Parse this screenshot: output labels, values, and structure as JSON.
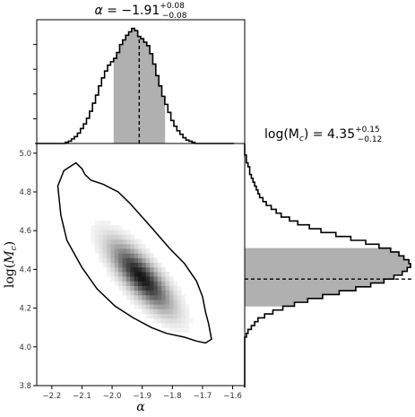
{
  "chart_data": [
    {
      "type": "histogram",
      "panel": "alpha-marginal",
      "title": {
        "prefix": "α = ",
        "value": "−1.91",
        "upper": "+0.08",
        "lower": "−0.08"
      },
      "x": [
        -2.25,
        -2.24,
        -2.23,
        -2.22,
        -2.21,
        -2.2,
        -2.19,
        -2.18,
        -2.17,
        -2.16,
        -2.15,
        -2.14,
        -2.13,
        -2.12,
        -2.11,
        -2.1,
        -2.09,
        -2.08,
        -2.07,
        -2.06,
        -2.05,
        -2.04,
        -2.03,
        -2.02,
        -2.01,
        -2.0,
        -1.99,
        -1.98,
        -1.97,
        -1.96,
        -1.95,
        -1.94,
        -1.93,
        -1.92,
        -1.91,
        -1.9,
        -1.89,
        -1.88,
        -1.87,
        -1.86,
        -1.85,
        -1.84,
        -1.83,
        -1.82,
        -1.81,
        -1.8,
        -1.79,
        -1.78,
        -1.77,
        -1.76,
        -1.75,
        -1.74,
        -1.73,
        -1.72,
        -1.71,
        -1.7,
        -1.69,
        -1.68,
        -1.67,
        -1.66,
        -1.65,
        -1.64,
        -1.63,
        -1.62,
        -1.61,
        -1.6
      ],
      "values": [
        0.0,
        0.0,
        0.0,
        0.0,
        0.0,
        0.0,
        0.0,
        0.0,
        0.0,
        0.0,
        0.01,
        0.02,
        0.04,
        0.06,
        0.09,
        0.13,
        0.17,
        0.22,
        0.28,
        0.35,
        0.42,
        0.5,
        0.57,
        0.63,
        0.68,
        0.71,
        0.74,
        0.79,
        0.86,
        0.9,
        0.94,
        0.97,
        1.0,
        0.98,
        0.93,
        0.91,
        0.88,
        0.85,
        0.78,
        0.69,
        0.59,
        0.5,
        0.41,
        0.34,
        0.27,
        0.2,
        0.15,
        0.11,
        0.08,
        0.05,
        0.03,
        0.02,
        0.01,
        0.0,
        0.0,
        0.0,
        0.0,
        0.0,
        0.0,
        0.0,
        0.0,
        0.0,
        0.0,
        0.0,
        0.0,
        0.0
      ],
      "median": -1.91,
      "shaded_interval": [
        -1.99,
        -1.83
      ],
      "xlim": [
        -2.25,
        -1.56
      ]
    },
    {
      "type": "density",
      "panel": "joint",
      "xlabel": "α",
      "ylabel": "log(M_c)",
      "xlim": [
        -2.25,
        -1.56
      ],
      "ylim": [
        3.8,
        5.05
      ],
      "xticks": [
        "−2.2",
        "−2.1",
        "−2.0",
        "−1.9",
        "−1.8",
        "−1.7",
        "−1.6"
      ],
      "xtick_values": [
        -2.2,
        -2.1,
        -2.0,
        -1.9,
        -1.8,
        -1.7,
        -1.6
      ],
      "yticks": [
        "3.8",
        "4.0",
        "4.2",
        "4.4",
        "4.6",
        "4.8",
        "5.0"
      ],
      "ytick_values": [
        3.8,
        4.0,
        4.2,
        4.4,
        4.6,
        4.8,
        5.0
      ],
      "peak": [
        -1.91,
        4.35
      ],
      "contour": [
        [
          -2.12,
          4.95
        ],
        [
          -2.1,
          4.92
        ],
        [
          -2.09,
          4.89
        ],
        [
          -2.07,
          4.86
        ],
        [
          -2.03,
          4.84
        ],
        [
          -1.98,
          4.8
        ],
        [
          -1.94,
          4.74
        ],
        [
          -1.9,
          4.67
        ],
        [
          -1.86,
          4.6
        ],
        [
          -1.81,
          4.51
        ],
        [
          -1.76,
          4.43
        ],
        [
          -1.72,
          4.34
        ],
        [
          -1.7,
          4.26
        ],
        [
          -1.69,
          4.18
        ],
        [
          -1.68,
          4.12
        ],
        [
          -1.67,
          4.04
        ],
        [
          -1.69,
          4.02
        ],
        [
          -1.72,
          4.03
        ],
        [
          -1.76,
          4.05
        ],
        [
          -1.82,
          4.07
        ],
        [
          -1.87,
          4.1
        ],
        [
          -1.93,
          4.15
        ],
        [
          -1.99,
          4.21
        ],
        [
          -2.05,
          4.3
        ],
        [
          -2.1,
          4.41
        ],
        [
          -2.15,
          4.55
        ],
        [
          -2.17,
          4.68
        ],
        [
          -2.18,
          4.83
        ],
        [
          -2.16,
          4.91
        ],
        [
          -2.13,
          4.94
        ]
      ]
    },
    {
      "type": "histogram",
      "panel": "logMc-marginal",
      "orientation": "horizontal",
      "title": {
        "prefix": "log(M",
        "sub": "c",
        "suffix": ") = ",
        "value": "4.35",
        "upper": "+0.15",
        "lower": "−0.12"
      },
      "y": [
        5.04,
        5.02,
        5.0,
        4.98,
        4.96,
        4.94,
        4.92,
        4.9,
        4.88,
        4.86,
        4.84,
        4.82,
        4.8,
        4.78,
        4.76,
        4.74,
        4.72,
        4.7,
        4.68,
        4.66,
        4.64,
        4.62,
        4.6,
        4.58,
        4.56,
        4.54,
        4.52,
        4.5,
        4.48,
        4.46,
        4.44,
        4.42,
        4.4,
        4.38,
        4.36,
        4.34,
        4.32,
        4.3,
        4.28,
        4.26,
        4.24,
        4.22,
        4.2,
        4.18,
        4.16,
        4.14,
        4.12,
        4.1,
        4.08,
        4.06,
        4.04,
        4.02,
        4.0,
        3.98,
        3.96,
        3.94,
        3.92,
        3.9,
        3.88,
        3.86,
        3.84,
        3.82,
        3.8
      ],
      "values": [
        0.0,
        0.0,
        0.0,
        0.01,
        0.01,
        0.02,
        0.03,
        0.03,
        0.04,
        0.05,
        0.06,
        0.07,
        0.08,
        0.09,
        0.11,
        0.13,
        0.16,
        0.19,
        0.22,
        0.27,
        0.32,
        0.39,
        0.46,
        0.55,
        0.64,
        0.73,
        0.81,
        0.88,
        0.93,
        0.96,
        0.99,
        1.0,
        0.98,
        0.95,
        0.9,
        0.84,
        0.76,
        0.67,
        0.57,
        0.47,
        0.38,
        0.3,
        0.23,
        0.17,
        0.12,
        0.08,
        0.06,
        0.04,
        0.02,
        0.01,
        0.0,
        0.0,
        0.0,
        0.0,
        0.0,
        0.0,
        0.0,
        0.0,
        0.0,
        0.0,
        0.0,
        0.0,
        0.0
      ],
      "median": 4.35,
      "shaded_interval": [
        4.22,
        4.5
      ],
      "ylim": [
        3.8,
        5.05
      ]
    }
  ]
}
